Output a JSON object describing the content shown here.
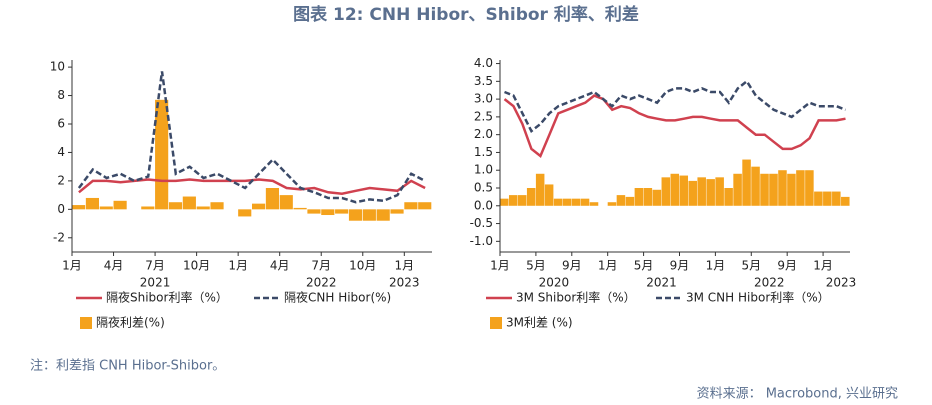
{
  "title": "图表 12: CNH Hibor、Shibor 利率、利差",
  "note": "注：利差指 CNH Hibor-Shibor。",
  "source": "资料来源： Macrobond, 兴业研究",
  "chart_data": [
    {
      "type": "line",
      "x": [
        "2021-01",
        "2021-02",
        "2021-03",
        "2021-04",
        "2021-05",
        "2021-06",
        "2021-07",
        "2021-08",
        "2021-09",
        "2021-10",
        "2021-11",
        "2021-12",
        "2022-01",
        "2022-02",
        "2022-03",
        "2022-04",
        "2022-05",
        "2022-06",
        "2022-07",
        "2022-08",
        "2022-09",
        "2022-10",
        "2022-11",
        "2022-12",
        "2023-01",
        "2023-02"
      ],
      "xlim": [
        "2021-01",
        "2023-03"
      ],
      "xticks": [
        {
          "value": "2021-01",
          "label": "1月"
        },
        {
          "value": "2021-04",
          "label": "4月"
        },
        {
          "value": "2021-07",
          "label": "7月"
        },
        {
          "value": "2021-10",
          "label": "10月"
        },
        {
          "value": "2022-01",
          "label": "1月"
        },
        {
          "value": "2022-04",
          "label": "4月"
        },
        {
          "value": "2022-07",
          "label": "7月"
        },
        {
          "value": "2022-10",
          "label": "10月"
        },
        {
          "value": "2023-01",
          "label": "1月"
        }
      ],
      "year_labels": [
        {
          "value": "2021-07",
          "label": "2021"
        },
        {
          "value": "2022-07",
          "label": "2022"
        },
        {
          "value": "2023-01",
          "label": "2023"
        }
      ],
      "ylim": [
        -3,
        10.5
      ],
      "yticks": [
        -2,
        0,
        2,
        4,
        6,
        8,
        10
      ],
      "legend": "bottom",
      "series": [
        {
          "name": "隔夜Shibor利率（%）",
          "color": "#d0414f",
          "kind": "line",
          "style": "solid",
          "values": [
            1.2,
            2.0,
            2.0,
            1.9,
            2.0,
            2.1,
            2.0,
            2.0,
            2.1,
            2.0,
            2.0,
            2.0,
            2.0,
            2.1,
            2.0,
            1.5,
            1.4,
            1.5,
            1.2,
            1.1,
            1.3,
            1.5,
            1.4,
            1.3,
            2.0,
            1.5
          ]
        },
        {
          "name": "隔夜CNH Hibor(%)",
          "color": "#3b4a68",
          "kind": "line",
          "style": "dashed",
          "values": [
            1.5,
            2.8,
            2.2,
            2.5,
            2.0,
            2.3,
            9.7,
            2.5,
            3.0,
            2.2,
            2.5,
            2.0,
            1.5,
            2.5,
            3.5,
            2.5,
            1.5,
            1.2,
            0.8,
            0.8,
            0.5,
            0.7,
            0.6,
            1.0,
            2.5,
            2.0
          ]
        },
        {
          "name": "隔夜利差(%)",
          "color": "#f4a21c",
          "kind": "bar",
          "style": "solid",
          "values": [
            0.3,
            0.8,
            0.2,
            0.6,
            0,
            0.2,
            7.7,
            0.5,
            0.9,
            0.2,
            0.5,
            0,
            -0.5,
            0.4,
            1.5,
            1.0,
            0.1,
            -0.3,
            -0.4,
            -0.3,
            -0.8,
            -0.8,
            -0.8,
            -0.3,
            0.5,
            0.5
          ]
        }
      ]
    },
    {
      "type": "line",
      "x": [
        "2020-01",
        "2020-02",
        "2020-03",
        "2020-04",
        "2020-05",
        "2020-06",
        "2020-07",
        "2020-08",
        "2020-09",
        "2020-10",
        "2020-11",
        "2020-12",
        "2021-01",
        "2021-02",
        "2021-03",
        "2021-04",
        "2021-05",
        "2021-06",
        "2021-07",
        "2021-08",
        "2021-09",
        "2021-10",
        "2021-11",
        "2021-12",
        "2022-01",
        "2022-02",
        "2022-03",
        "2022-04",
        "2022-05",
        "2022-06",
        "2022-07",
        "2022-08",
        "2022-09",
        "2022-10",
        "2022-11",
        "2022-12",
        "2023-01",
        "2023-02",
        "2023-03"
      ],
      "xlim": [
        "2020-01",
        "2023-04"
      ],
      "xticks": [
        {
          "value": "2020-01",
          "label": "1月"
        },
        {
          "value": "2020-05",
          "label": "5月"
        },
        {
          "value": "2020-09",
          "label": "9月"
        },
        {
          "value": "2021-01",
          "label": "1月"
        },
        {
          "value": "2021-05",
          "label": "5月"
        },
        {
          "value": "2021-09",
          "label": "9月"
        },
        {
          "value": "2022-01",
          "label": "1月"
        },
        {
          "value": "2022-05",
          "label": "5月"
        },
        {
          "value": "2022-09",
          "label": "9月"
        },
        {
          "value": "2023-01",
          "label": "1月"
        }
      ],
      "year_labels": [
        {
          "value": "2020-07",
          "label": "2020"
        },
        {
          "value": "2021-07",
          "label": "2021"
        },
        {
          "value": "2022-07",
          "label": "2022"
        },
        {
          "value": "2023-03",
          "label": "2023"
        }
      ],
      "ylim": [
        -1.3,
        4.1
      ],
      "yticks": [
        {
          "value": -1,
          "label": "-1.0"
        },
        -0.5,
        {
          "value": 0,
          "label": "0.0"
        },
        0.5,
        {
          "value": 1,
          "label": "1.0"
        },
        1.5,
        {
          "value": 2,
          "label": "2.0"
        },
        2.5,
        {
          "value": 3,
          "label": "3.0"
        },
        3.5,
        {
          "value": 4,
          "label": "4.0"
        }
      ],
      "legend": "bottom",
      "series": [
        {
          "name": "3M Shibor利率（%）",
          "color": "#d0414f",
          "kind": "line",
          "style": "solid",
          "values": [
            3.0,
            2.8,
            2.3,
            1.6,
            1.4,
            2.0,
            2.6,
            2.7,
            2.8,
            2.9,
            3.1,
            3.0,
            2.7,
            2.8,
            2.75,
            2.6,
            2.5,
            2.45,
            2.4,
            2.4,
            2.45,
            2.5,
            2.5,
            2.45,
            2.4,
            2.4,
            2.4,
            2.2,
            2.0,
            2.0,
            1.8,
            1.6,
            1.6,
            1.7,
            1.9,
            2.4,
            2.4,
            2.4,
            2.45
          ]
        },
        {
          "name": "3M CNH Hibor利率（%）",
          "color": "#3b4a68",
          "kind": "line",
          "style": "dashed",
          "values": [
            3.2,
            3.1,
            2.6,
            2.1,
            2.3,
            2.6,
            2.8,
            2.9,
            3.0,
            3.1,
            3.2,
            3.0,
            2.8,
            3.1,
            3.0,
            3.1,
            3.0,
            2.9,
            3.2,
            3.3,
            3.3,
            3.2,
            3.3,
            3.2,
            3.2,
            2.9,
            3.3,
            3.5,
            3.1,
            2.9,
            2.7,
            2.6,
            2.5,
            2.7,
            2.9,
            2.8,
            2.8,
            2.8,
            2.7
          ]
        },
        {
          "name": "3M利差 (%)",
          "color": "#f4a21c",
          "kind": "bar",
          "style": "solid",
          "values": [
            0.2,
            0.3,
            0.3,
            0.5,
            0.9,
            0.6,
            0.2,
            0.2,
            0.2,
            0.2,
            0.1,
            0,
            0.1,
            0.3,
            0.25,
            0.5,
            0.5,
            0.45,
            0.8,
            0.9,
            0.85,
            0.7,
            0.8,
            0.75,
            0.8,
            0.5,
            0.9,
            1.3,
            1.1,
            0.9,
            0.9,
            1.0,
            0.9,
            1.0,
            1.0,
            0.4,
            0.4,
            0.4,
            0.25
          ]
        }
      ]
    }
  ]
}
